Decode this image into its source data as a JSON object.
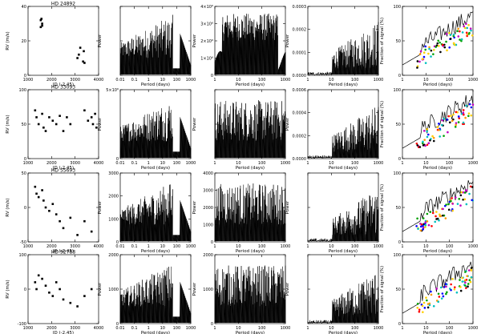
{
  "figure": {
    "rows": 4,
    "cols": 5
  },
  "chart_data": [
    {
      "row": 0,
      "col": 0,
      "type": "scatter",
      "title": "HD 24892",
      "xlabel": "JD (-2.45)",
      "ylabel": "RV (m/s)",
      "xticks": [
        "1000",
        "2000",
        "3000",
        "4000"
      ],
      "yticks": [
        "40",
        "20",
        "0"
      ],
      "points": [
        [
          0.18,
          0.2
        ],
        [
          0.19,
          0.18
        ],
        [
          0.2,
          0.25
        ],
        [
          0.18,
          0.3
        ],
        [
          0.2,
          0.28
        ],
        [
          0.7,
          0.75
        ],
        [
          0.72,
          0.7
        ],
        [
          0.78,
          0.8
        ],
        [
          0.8,
          0.82
        ],
        [
          0.74,
          0.6
        ],
        [
          0.79,
          0.65
        ]
      ]
    },
    {
      "row": 0,
      "col": 1,
      "type": "line",
      "xlabel": "Period (days)",
      "ylabel": "Power",
      "xticks": [
        "0.01",
        "0.1",
        "1",
        "10",
        "100",
        "1000"
      ],
      "yticks": [
        "",
        "",
        ""
      ],
      "profile": "dense-left"
    },
    {
      "row": 0,
      "col": 2,
      "type": "line",
      "xlabel": "Period (days)",
      "ylabel": "Power",
      "xticks": [
        "1",
        "10",
        "100",
        "1000"
      ],
      "yticks": [
        "4×10⁶",
        "3×10⁶",
        "2×10⁶",
        "1×10⁶",
        "0"
      ],
      "profile": "block"
    },
    {
      "row": 0,
      "col": 3,
      "type": "line",
      "xlabel": "Period (days)",
      "ylabel": "Power",
      "xticks": [
        "1",
        "10",
        "100",
        "1000"
      ],
      "yticks": [
        "0.0003",
        "0.0002",
        "0.0001",
        "0.0000"
      ],
      "profile": "rise-right"
    },
    {
      "row": 0,
      "col": 4,
      "type": "scatter",
      "xlabel": "Period (days)",
      "ylabel": "Fraction of signal (%)",
      "xticks": [
        "1",
        "10",
        "100",
        "1000"
      ],
      "yticks": [
        "100",
        "50",
        "0"
      ],
      "profile": "colored"
    },
    {
      "row": 1,
      "col": 0,
      "type": "scatter",
      "title": "HD 33093",
      "xlabel": "JD (-2.45)",
      "ylabel": "RV (m/s)",
      "xticks": [
        "1000",
        "2000",
        "3000",
        "4000"
      ],
      "yticks": [
        "100",
        "50",
        "0"
      ],
      "points": [
        [
          0.1,
          0.3
        ],
        [
          0.12,
          0.4
        ],
        [
          0.15,
          0.5
        ],
        [
          0.2,
          0.35
        ],
        [
          0.22,
          0.55
        ],
        [
          0.25,
          0.6
        ],
        [
          0.3,
          0.4
        ],
        [
          0.35,
          0.45
        ],
        [
          0.4,
          0.5
        ],
        [
          0.45,
          0.38
        ],
        [
          0.5,
          0.6
        ],
        [
          0.55,
          0.4
        ],
        [
          0.6,
          0.5
        ],
        [
          0.8,
          0.3
        ],
        [
          0.85,
          0.45
        ],
        [
          0.9,
          0.4
        ],
        [
          0.92,
          0.5
        ],
        [
          0.95,
          0.35
        ],
        [
          0.97,
          0.55
        ]
      ]
    },
    {
      "row": 1,
      "col": 1,
      "type": "line",
      "xlabel": "Period (days)",
      "ylabel": "Power",
      "xticks": [
        "0.01",
        "0.1",
        "1",
        "10",
        "100",
        "1000"
      ],
      "yticks": [
        "5×10⁶",
        "0"
      ],
      "profile": "dense-left"
    },
    {
      "row": 1,
      "col": 2,
      "type": "line",
      "xlabel": "Period (days)",
      "ylabel": "Power",
      "xticks": [
        "1",
        "10",
        "100",
        "1000"
      ],
      "yticks": [
        "",
        "",
        ""
      ],
      "profile": "noisy"
    },
    {
      "row": 1,
      "col": 3,
      "type": "line",
      "xlabel": "Period (days)",
      "ylabel": "Power",
      "xticks": [
        "1",
        "10",
        "100",
        "1000"
      ],
      "yticks": [
        "0.0006",
        "0.0004",
        "0.0002",
        "0.0000"
      ],
      "profile": "rise-right"
    },
    {
      "row": 1,
      "col": 4,
      "type": "scatter",
      "xlabel": "Period (days)",
      "ylabel": "Fraction of signal (%)",
      "xticks": [
        "1",
        "10",
        "100",
        "1000"
      ],
      "yticks": [
        "100",
        "50",
        "0"
      ],
      "profile": "colored"
    },
    {
      "row": 2,
      "col": 0,
      "type": "scatter",
      "title": "HD 55693",
      "xlabel": "JD (-2.45)",
      "ylabel": "RV (m/s)",
      "xticks": [
        "1000",
        "2000",
        "3000",
        "4000"
      ],
      "yticks": [
        "50",
        "0",
        "-50"
      ],
      "points": [
        [
          0.1,
          0.2
        ],
        [
          0.12,
          0.3
        ],
        [
          0.15,
          0.35
        ],
        [
          0.2,
          0.25
        ],
        [
          0.22,
          0.4
        ],
        [
          0.25,
          0.5
        ],
        [
          0.3,
          0.55
        ],
        [
          0.35,
          0.45
        ],
        [
          0.4,
          0.6
        ],
        [
          0.45,
          0.7
        ],
        [
          0.5,
          0.8
        ],
        [
          0.6,
          0.65
        ],
        [
          0.7,
          0.9
        ],
        [
          0.8,
          0.7
        ],
        [
          0.9,
          0.85
        ]
      ]
    },
    {
      "row": 2,
      "col": 1,
      "type": "line",
      "xlabel": "Period (days)",
      "ylabel": "Power",
      "xticks": [
        "0.01",
        "0.1",
        "1",
        "10",
        "100",
        "1000"
      ],
      "yticks": [
        "3000",
        "2000",
        "1000",
        "0"
      ],
      "profile": "dense-left"
    },
    {
      "row": 2,
      "col": 2,
      "type": "line",
      "xlabel": "Period (days)",
      "ylabel": "Power",
      "xticks": [
        "1",
        "10",
        "100",
        "1000"
      ],
      "yticks": [
        "4000",
        "3000",
        "2000",
        "1000",
        "0"
      ],
      "profile": "noisy"
    },
    {
      "row": 2,
      "col": 3,
      "type": "line",
      "xlabel": "Period (days)",
      "ylabel": "Power",
      "xticks": [
        "1",
        "10",
        "100",
        "1000"
      ],
      "yticks": [
        "",
        "",
        ""
      ],
      "profile": "rise-right"
    },
    {
      "row": 2,
      "col": 4,
      "type": "scatter",
      "xlabel": "Period (days)",
      "ylabel": "Fraction of signal (%)",
      "xticks": [
        "1",
        "10",
        "100",
        "1000"
      ],
      "yticks": [
        "100",
        "50",
        "0"
      ],
      "profile": "colored"
    },
    {
      "row": 3,
      "col": 0,
      "type": "scatter",
      "title": "HD 92788",
      "xlabel": "JD (-2.45)",
      "ylabel": "RV (m/s)",
      "xticks": [
        "1000",
        "2000",
        "3000",
        "4000"
      ],
      "yticks": [
        "100",
        "0",
        "-100"
      ],
      "points": [
        [
          0.1,
          0.4
        ],
        [
          0.12,
          0.5
        ],
        [
          0.15,
          0.3
        ],
        [
          0.2,
          0.35
        ],
        [
          0.25,
          0.45
        ],
        [
          0.3,
          0.55
        ],
        [
          0.35,
          0.6
        ],
        [
          0.4,
          0.4
        ],
        [
          0.45,
          0.5
        ],
        [
          0.5,
          0.65
        ],
        [
          0.6,
          0.7
        ],
        [
          0.7,
          0.75
        ],
        [
          0.8,
          0.6
        ],
        [
          0.9,
          0.5
        ]
      ]
    },
    {
      "row": 3,
      "col": 1,
      "type": "line",
      "xlabel": "Period (days)",
      "ylabel": "Power",
      "xticks": [
        "0.01",
        "0.1",
        "1",
        "10",
        "100",
        "1000"
      ],
      "yticks": [
        "2000",
        "1000",
        "0"
      ],
      "profile": "dense-left"
    },
    {
      "row": 3,
      "col": 2,
      "type": "line",
      "xlabel": "Period (days)",
      "ylabel": "Power",
      "xticks": [
        "1",
        "10",
        "100",
        "1000"
      ],
      "yticks": [
        "2000",
        "1000",
        "0"
      ],
      "profile": "noisy"
    },
    {
      "row": 3,
      "col": 3,
      "type": "line",
      "xlabel": "Period (days)",
      "ylabel": "Power",
      "xticks": [
        "1",
        "10",
        "100",
        "1000"
      ],
      "yticks": [
        "",
        "",
        ""
      ],
      "profile": "rise-right"
    },
    {
      "row": 3,
      "col": 4,
      "type": "scatter",
      "xlabel": "Period (days)",
      "ylabel": "Fraction of signal (%)",
      "xticks": [
        "1",
        "10",
        "100",
        "1000"
      ],
      "yticks": [
        "100",
        "50",
        "0"
      ],
      "profile": "colored"
    }
  ]
}
